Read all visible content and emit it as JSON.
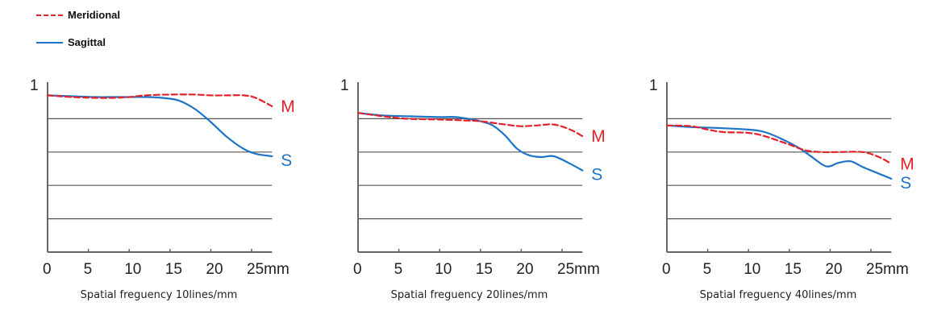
{
  "legend": {
    "meridional": {
      "label": "Meridional",
      "color": "#e3212b",
      "style": "dashed"
    },
    "sagittal": {
      "label": "Sagittal",
      "color": "#1b74c5",
      "style": "solid"
    }
  },
  "chart_data": [
    {
      "type": "line",
      "title": "Spatial freguency 10lines/mm",
      "y_top_label": "1",
      "x_tick_labels": [
        "0",
        "5",
        "10",
        "15",
        "20",
        "25mm"
      ],
      "x_ticks": [
        0,
        5,
        10,
        15,
        20,
        25
      ],
      "xlim": [
        0,
        27.5
      ],
      "ylim": [
        0,
        1
      ],
      "y_gridlines": [
        0.2,
        0.4,
        0.6,
        0.8
      ],
      "series": [
        {
          "name": "Meridional",
          "end_label": "M",
          "x": [
            0,
            3,
            6,
            8,
            10,
            12,
            15,
            18,
            20,
            22,
            24,
            25.5,
            27.5
          ],
          "y": [
            0.94,
            0.93,
            0.925,
            0.925,
            0.93,
            0.94,
            0.945,
            0.945,
            0.94,
            0.94,
            0.94,
            0.925,
            0.875
          ]
        },
        {
          "name": "Sagittal",
          "end_label": "S",
          "x": [
            0,
            3,
            6,
            8,
            10,
            12,
            14,
            16,
            18,
            20,
            22,
            24,
            25.5,
            27.5
          ],
          "y": [
            0.94,
            0.935,
            0.93,
            0.93,
            0.93,
            0.93,
            0.925,
            0.91,
            0.86,
            0.78,
            0.69,
            0.62,
            0.59,
            0.575
          ]
        }
      ]
    },
    {
      "type": "line",
      "title": "Spatial freguency 20lines/mm",
      "y_top_label": "1",
      "x_tick_labels": [
        "0",
        "5",
        "10",
        "15",
        "20",
        "25mm"
      ],
      "x_ticks": [
        0,
        5,
        10,
        15,
        20,
        25
      ],
      "xlim": [
        0,
        27.5
      ],
      "ylim": [
        0,
        1
      ],
      "y_gridlines": [
        0.2,
        0.4,
        0.6,
        0.8
      ],
      "series": [
        {
          "name": "Meridional",
          "end_label": "M",
          "x": [
            0,
            3,
            6,
            10,
            13,
            15,
            18,
            20,
            22,
            24,
            26,
            27.5
          ],
          "y": [
            0.835,
            0.815,
            0.8,
            0.795,
            0.79,
            0.785,
            0.765,
            0.755,
            0.76,
            0.765,
            0.735,
            0.695
          ]
        },
        {
          "name": "Sagittal",
          "end_label": "S",
          "x": [
            0,
            3,
            6,
            10,
            12,
            14,
            15,
            16.5,
            18,
            19.5,
            21,
            22.5,
            24,
            26,
            27.5
          ],
          "y": [
            0.835,
            0.82,
            0.815,
            0.81,
            0.81,
            0.795,
            0.785,
            0.76,
            0.7,
            0.62,
            0.58,
            0.57,
            0.575,
            0.53,
            0.49
          ]
        }
      ]
    },
    {
      "type": "line",
      "title": "Spatial freguency 40lines/mm",
      "y_top_label": "1",
      "x_tick_labels": [
        "0",
        "5",
        "10",
        "15",
        "20",
        "25mm"
      ],
      "x_ticks": [
        0,
        5,
        10,
        15,
        20,
        25
      ],
      "xlim": [
        0,
        27.5
      ],
      "ylim": [
        0,
        1
      ],
      "y_gridlines": [
        0.2,
        0.4,
        0.6,
        0.8
      ],
      "series": [
        {
          "name": "Meridional",
          "end_label": "M",
          "x": [
            0,
            3,
            5,
            7,
            10,
            12,
            15,
            17,
            19,
            21,
            24,
            26,
            27.5
          ],
          "y": [
            0.76,
            0.755,
            0.735,
            0.72,
            0.715,
            0.695,
            0.645,
            0.61,
            0.6,
            0.6,
            0.6,
            0.57,
            0.53
          ]
        },
        {
          "name": "Sagittal",
          "end_label": "S",
          "x": [
            0,
            3,
            6,
            10,
            12,
            14,
            16,
            17.5,
            19.5,
            21,
            22.5,
            24,
            26,
            27.5
          ],
          "y": [
            0.76,
            0.75,
            0.745,
            0.735,
            0.72,
            0.68,
            0.63,
            0.58,
            0.515,
            0.535,
            0.545,
            0.51,
            0.47,
            0.44
          ]
        }
      ]
    }
  ]
}
